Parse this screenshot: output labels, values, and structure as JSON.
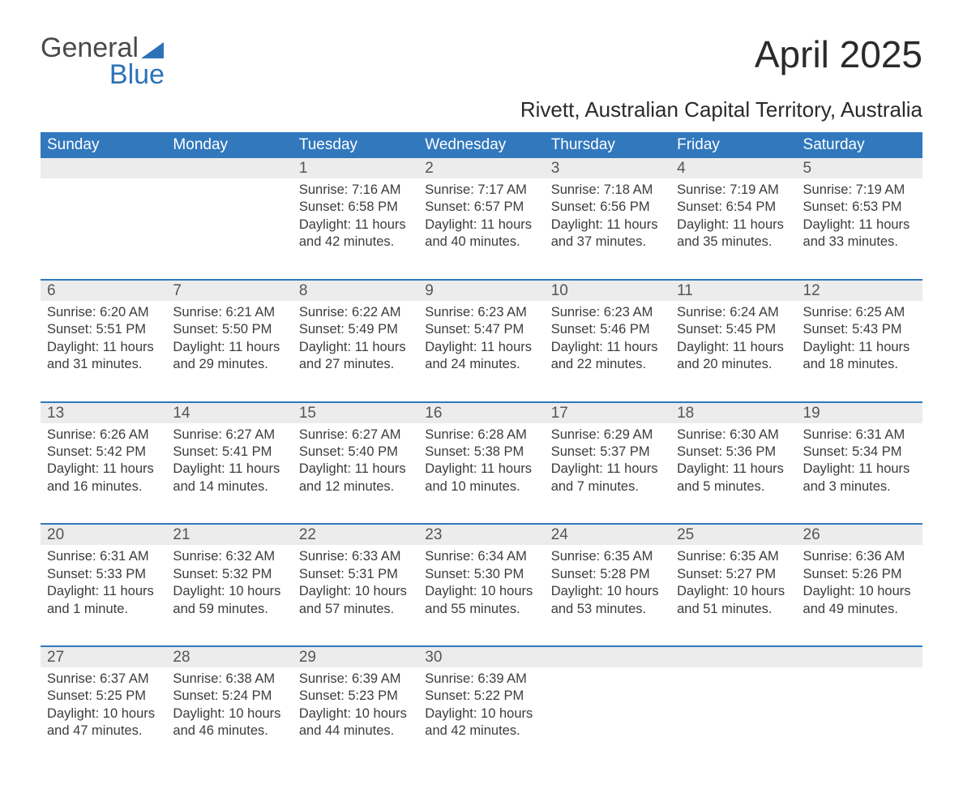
{
  "logo": {
    "general": "General",
    "blue": "Blue"
  },
  "title": "April 2025",
  "subtitle": "Rivett, Australian Capital Territory, Australia",
  "colors": {
    "header_bg": "#3178bd",
    "header_text": "#ffffff",
    "daynum_bg": "#ececec",
    "daynum_text": "#555555",
    "body_text": "#3c3c3c",
    "rule": "#3178bd",
    "logo_gray": "#4a4a4a",
    "logo_blue": "#2d72b8",
    "page_bg": "#ffffff"
  },
  "fonts": {
    "title_size_pt": 34,
    "subtitle_size_pt": 20,
    "dayheader_size_pt": 14,
    "daynum_size_pt": 14,
    "body_size_pt": 12
  },
  "day_headers": [
    "Sunday",
    "Monday",
    "Tuesday",
    "Wednesday",
    "Thursday",
    "Friday",
    "Saturday"
  ],
  "weeks": [
    [
      null,
      null,
      {
        "n": "1",
        "sunrise": "7:16 AM",
        "sunset": "6:58 PM",
        "daylight": "11 hours and 42 minutes."
      },
      {
        "n": "2",
        "sunrise": "7:17 AM",
        "sunset": "6:57 PM",
        "daylight": "11 hours and 40 minutes."
      },
      {
        "n": "3",
        "sunrise": "7:18 AM",
        "sunset": "6:56 PM",
        "daylight": "11 hours and 37 minutes."
      },
      {
        "n": "4",
        "sunrise": "7:19 AM",
        "sunset": "6:54 PM",
        "daylight": "11 hours and 35 minutes."
      },
      {
        "n": "5",
        "sunrise": "7:19 AM",
        "sunset": "6:53 PM",
        "daylight": "11 hours and 33 minutes."
      }
    ],
    [
      {
        "n": "6",
        "sunrise": "6:20 AM",
        "sunset": "5:51 PM",
        "daylight": "11 hours and 31 minutes."
      },
      {
        "n": "7",
        "sunrise": "6:21 AM",
        "sunset": "5:50 PM",
        "daylight": "11 hours and 29 minutes."
      },
      {
        "n": "8",
        "sunrise": "6:22 AM",
        "sunset": "5:49 PM",
        "daylight": "11 hours and 27 minutes."
      },
      {
        "n": "9",
        "sunrise": "6:23 AM",
        "sunset": "5:47 PM",
        "daylight": "11 hours and 24 minutes."
      },
      {
        "n": "10",
        "sunrise": "6:23 AM",
        "sunset": "5:46 PM",
        "daylight": "11 hours and 22 minutes."
      },
      {
        "n": "11",
        "sunrise": "6:24 AM",
        "sunset": "5:45 PM",
        "daylight": "11 hours and 20 minutes."
      },
      {
        "n": "12",
        "sunrise": "6:25 AM",
        "sunset": "5:43 PM",
        "daylight": "11 hours and 18 minutes."
      }
    ],
    [
      {
        "n": "13",
        "sunrise": "6:26 AM",
        "sunset": "5:42 PM",
        "daylight": "11 hours and 16 minutes."
      },
      {
        "n": "14",
        "sunrise": "6:27 AM",
        "sunset": "5:41 PM",
        "daylight": "11 hours and 14 minutes."
      },
      {
        "n": "15",
        "sunrise": "6:27 AM",
        "sunset": "5:40 PM",
        "daylight": "11 hours and 12 minutes."
      },
      {
        "n": "16",
        "sunrise": "6:28 AM",
        "sunset": "5:38 PM",
        "daylight": "11 hours and 10 minutes."
      },
      {
        "n": "17",
        "sunrise": "6:29 AM",
        "sunset": "5:37 PM",
        "daylight": "11 hours and 7 minutes."
      },
      {
        "n": "18",
        "sunrise": "6:30 AM",
        "sunset": "5:36 PM",
        "daylight": "11 hours and 5 minutes."
      },
      {
        "n": "19",
        "sunrise": "6:31 AM",
        "sunset": "5:34 PM",
        "daylight": "11 hours and 3 minutes."
      }
    ],
    [
      {
        "n": "20",
        "sunrise": "6:31 AM",
        "sunset": "5:33 PM",
        "daylight": "11 hours and 1 minute."
      },
      {
        "n": "21",
        "sunrise": "6:32 AM",
        "sunset": "5:32 PM",
        "daylight": "10 hours and 59 minutes."
      },
      {
        "n": "22",
        "sunrise": "6:33 AM",
        "sunset": "5:31 PM",
        "daylight": "10 hours and 57 minutes."
      },
      {
        "n": "23",
        "sunrise": "6:34 AM",
        "sunset": "5:30 PM",
        "daylight": "10 hours and 55 minutes."
      },
      {
        "n": "24",
        "sunrise": "6:35 AM",
        "sunset": "5:28 PM",
        "daylight": "10 hours and 53 minutes."
      },
      {
        "n": "25",
        "sunrise": "6:35 AM",
        "sunset": "5:27 PM",
        "daylight": "10 hours and 51 minutes."
      },
      {
        "n": "26",
        "sunrise": "6:36 AM",
        "sunset": "5:26 PM",
        "daylight": "10 hours and 49 minutes."
      }
    ],
    [
      {
        "n": "27",
        "sunrise": "6:37 AM",
        "sunset": "5:25 PM",
        "daylight": "10 hours and 47 minutes."
      },
      {
        "n": "28",
        "sunrise": "6:38 AM",
        "sunset": "5:24 PM",
        "daylight": "10 hours and 46 minutes."
      },
      {
        "n": "29",
        "sunrise": "6:39 AM",
        "sunset": "5:23 PM",
        "daylight": "10 hours and 44 minutes."
      },
      {
        "n": "30",
        "sunrise": "6:39 AM",
        "sunset": "5:22 PM",
        "daylight": "10 hours and 42 minutes."
      },
      null,
      null,
      null
    ]
  ],
  "labels": {
    "sunrise": "Sunrise: ",
    "sunset": "Sunset: ",
    "daylight": "Daylight: "
  }
}
